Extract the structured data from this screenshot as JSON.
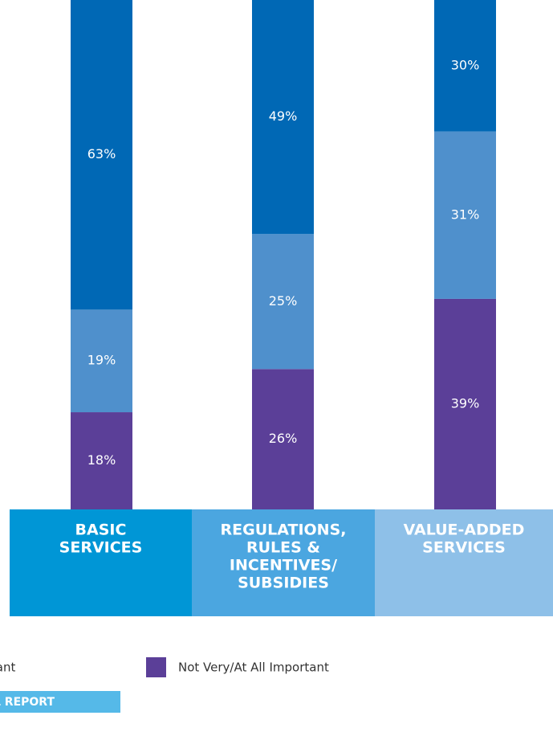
{
  "chart_data": {
    "type": "stacked_bar",
    "categories": [
      [
        "BASIC",
        "SERVICES"
      ],
      [
        "REGULATIONS,",
        "RULES &",
        "INCENTIVES/",
        "SUBSIDIES"
      ],
      [
        "VALUE-ADDED",
        "SERVICES"
      ]
    ],
    "category_colors": [
      "#0096d6",
      "#4ba6e0",
      "#8ec0e8"
    ],
    "series": [
      {
        "name": "Not Very/At All Important",
        "color": "#5b3f98",
        "values": [
          18,
          26,
          39
        ],
        "value_labels": [
          "18%",
          "26%",
          "39%"
        ]
      },
      {
        "name": "Important",
        "color": "#4f90cc",
        "values": [
          19,
          25,
          31
        ],
        "value_labels": [
          "19%",
          "25%",
          "31%"
        ]
      },
      {
        "color": "#0068b5",
        "values": [
          63,
          49,
          30
        ],
        "value_labels": [
          "63%",
          "49%",
          "30%"
        ]
      }
    ],
    "ylim": [
      0,
      100
    ],
    "footer": "L REPORT"
  }
}
